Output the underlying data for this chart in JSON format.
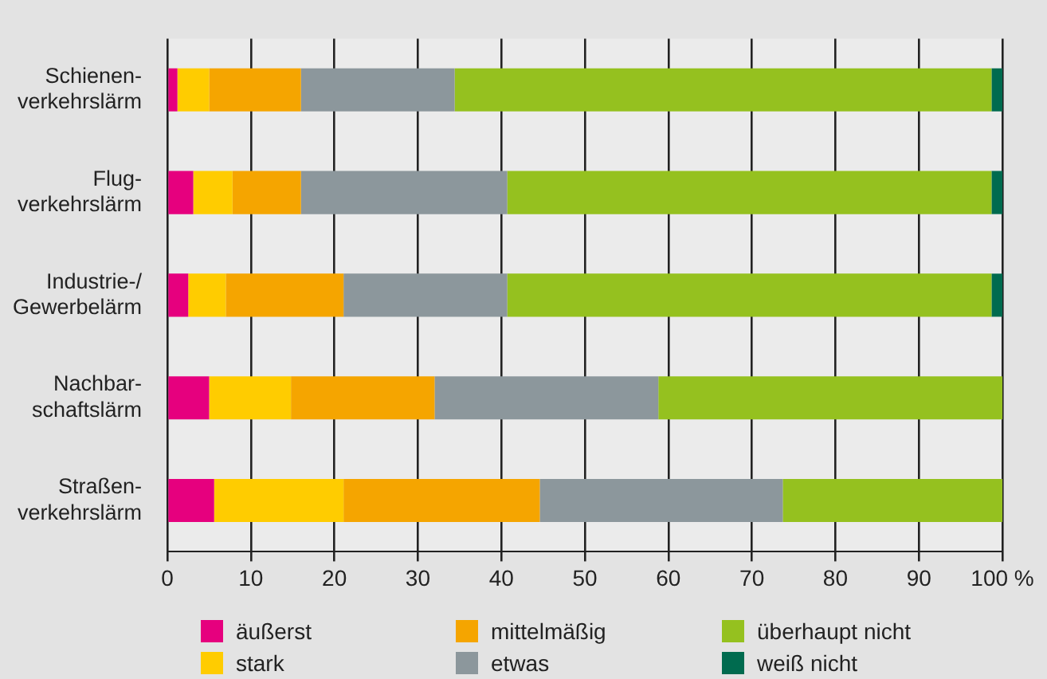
{
  "chart_data": {
    "type": "bar",
    "orientation": "horizontal",
    "stacked": true,
    "categories": [
      "Schienen-\nverkehrslärm",
      "Flug-\nverkehrslärm",
      "Industrie-/\nGewerbelärm",
      "Nachbar-\nschaftslärm",
      "Straßen-\nverkehrslärm"
    ],
    "series": [
      {
        "name": "äußerst",
        "color": "#e6007e",
        "values": [
          1.2,
          3.1,
          2.5,
          5.0,
          5.6
        ]
      },
      {
        "name": "stark",
        "color": "#ffcc00",
        "values": [
          3.8,
          4.7,
          4.5,
          9.8,
          15.5
        ]
      },
      {
        "name": "mittelmäßig",
        "color": "#f5a500",
        "values": [
          11.0,
          8.2,
          14.1,
          17.2,
          23.5
        ]
      },
      {
        "name": "etwas",
        "color": "#8c979c",
        "values": [
          18.4,
          24.7,
          19.6,
          26.8,
          29.1
        ]
      },
      {
        "name": "überhaupt nicht",
        "color": "#95c11f",
        "values": [
          64.3,
          58.0,
          58.0,
          41.2,
          26.3
        ]
      },
      {
        "name": "weiß nicht",
        "color": "#006b4f",
        "values": [
          1.3,
          1.3,
          1.3,
          0,
          0
        ]
      }
    ],
    "xlim": [
      0,
      100
    ],
    "xticks": [
      0,
      10,
      20,
      30,
      40,
      50,
      60,
      70,
      80,
      90,
      {
        "value": 100,
        "label": "100 %"
      }
    ],
    "grid": "x",
    "legend": "bottom"
  }
}
